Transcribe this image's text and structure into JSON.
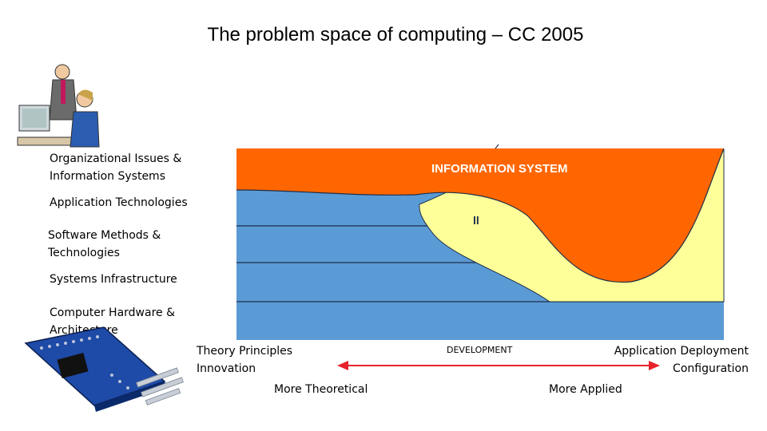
{
  "title": "The problem space of computing – CC 2005",
  "layers": [
    {
      "label_lines": [
        "Organizational Issues &",
        "Information Systems"
      ]
    },
    {
      "label_lines": [
        "Application Technologies"
      ]
    },
    {
      "label_lines": [
        "Software Methods &",
        "Technologies"
      ]
    },
    {
      "label_lines": [
        "Systems Infrastructure"
      ]
    },
    {
      "label_lines": [
        "Computer Hardware &",
        "Architecture"
      ]
    }
  ],
  "regions": {
    "information_system": "INFORMATION SYSTEM",
    "development": "DEVELOPMENT"
  },
  "axis": {
    "left_lines": [
      "Theory Principles",
      "Innovation"
    ],
    "right_lines": [
      "Application Deployment",
      "Configuration"
    ],
    "left_end": "More Theoretical",
    "right_end": "More Applied"
  },
  "colors": {
    "orange": "#ff6600",
    "blue": "#5b9bd5",
    "yellow": "#ffff99",
    "arrow": "#e8212b"
  },
  "icons": [
    "office-workers-clipart",
    "circuit-board-clipart"
  ]
}
